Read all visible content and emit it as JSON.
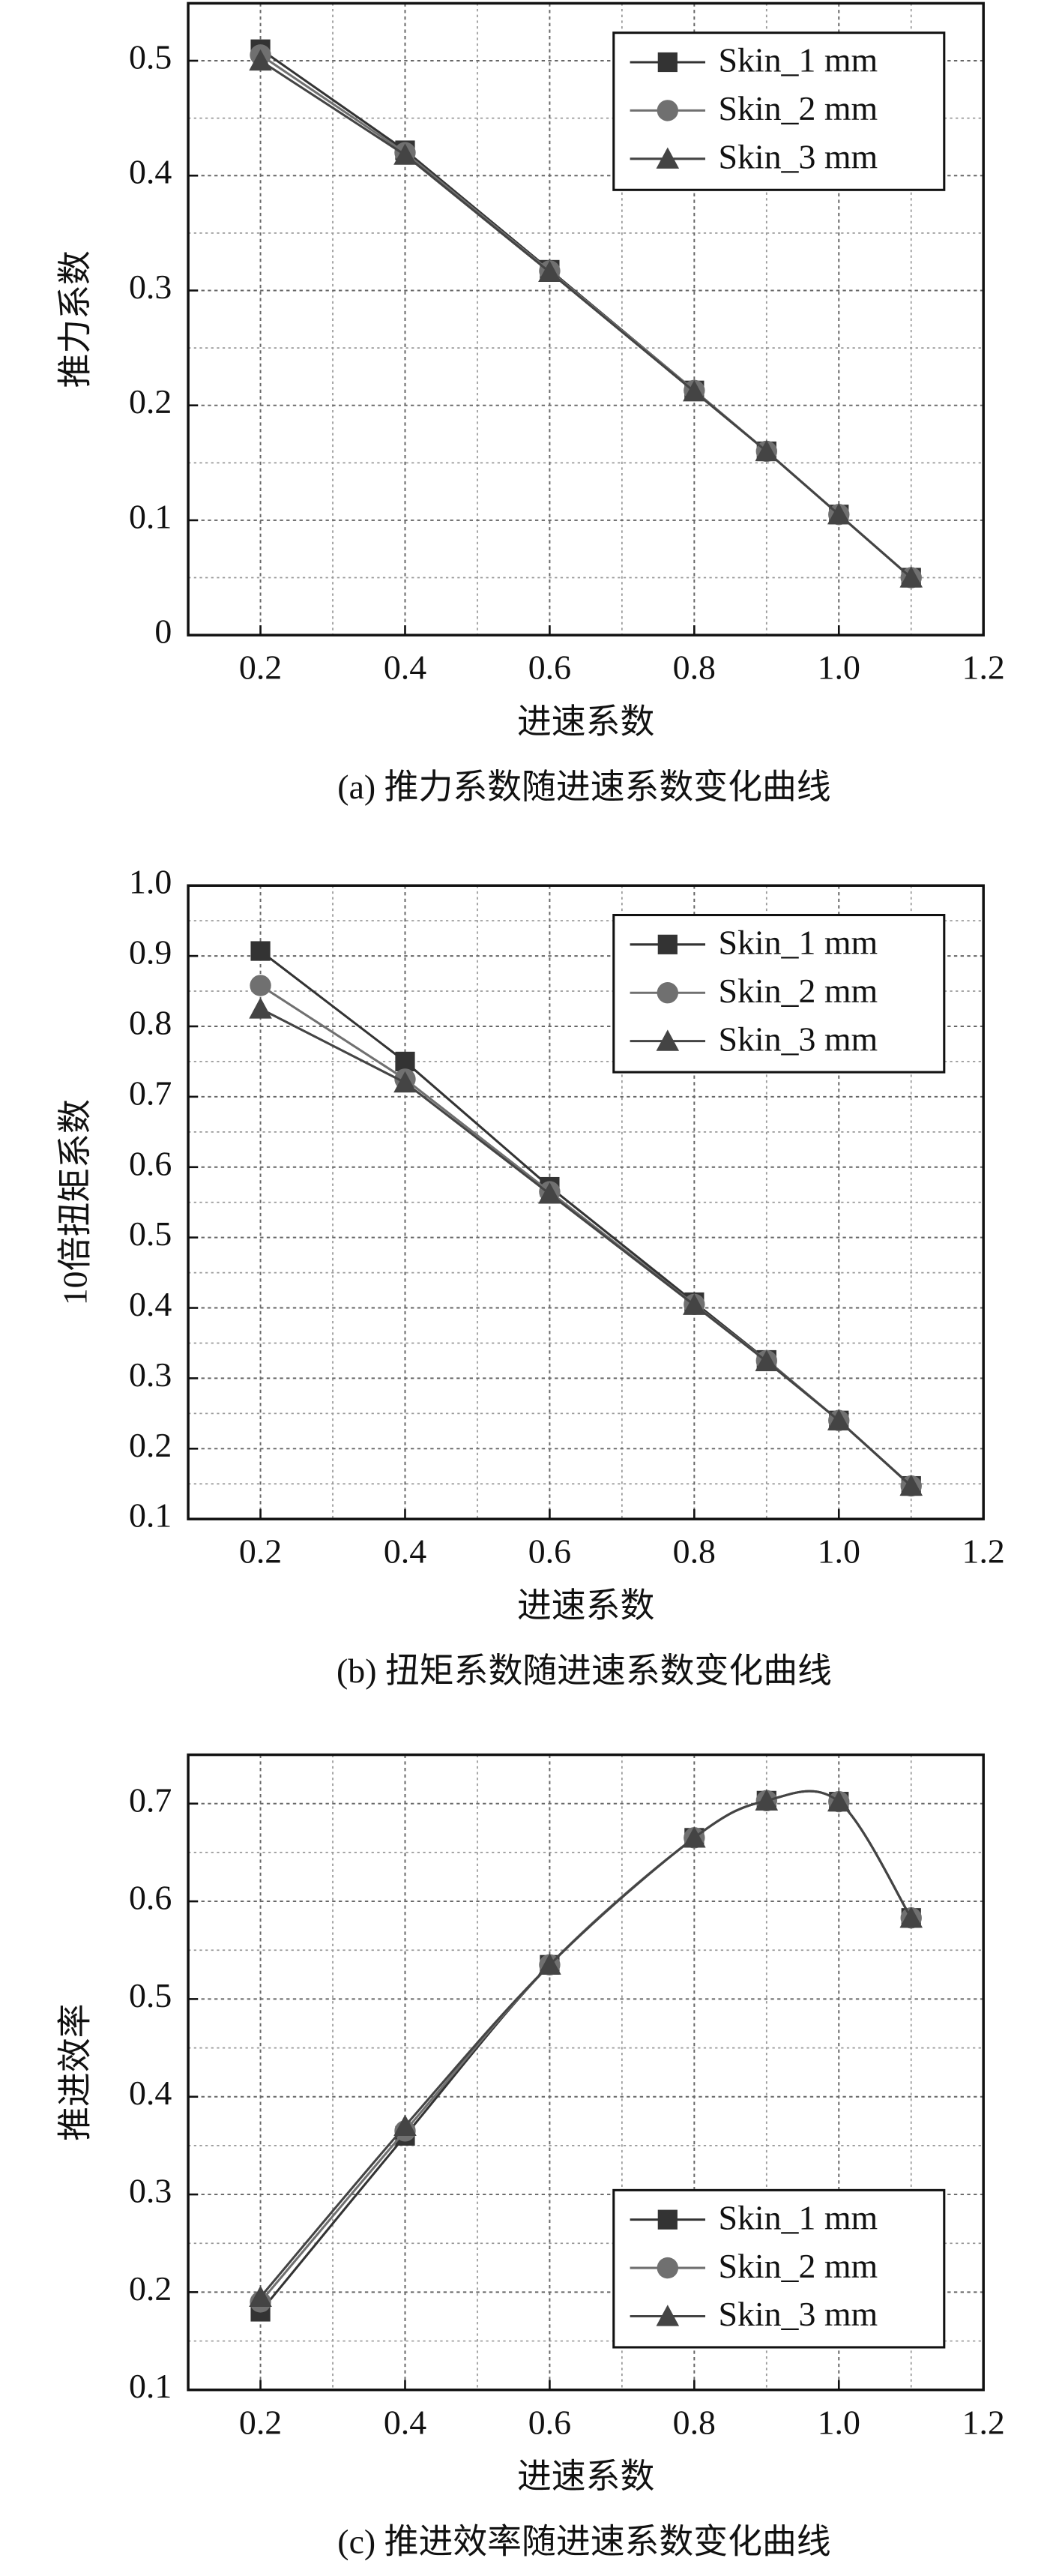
{
  "chart_data": [
    {
      "type": "line",
      "title": "(a) 推力系数随进速系数变化曲线",
      "xlabel": "进速系数",
      "ylabel": "推力系数",
      "xlim": [
        0.1,
        1.2
      ],
      "xticks": [
        0.2,
        0.4,
        0.6,
        0.8,
        {
          "value": 1,
          "label": "1.0"
        },
        1.2
      ],
      "ylim": [
        0,
        0.55
      ],
      "yticks": [
        0,
        0.1,
        0.2,
        0.3,
        0.4,
        0.5
      ],
      "grid": true,
      "legend": "upper right",
      "smooth": false,
      "series": [
        {
          "name": "Skin_1 mm",
          "color": "#333333",
          "marker": "square",
          "x": [
            0.2,
            0.4,
            0.6,
            0.8,
            0.9,
            1,
            1.1
          ],
          "values": [
            0.51,
            0.422,
            0.318,
            0.213,
            0.16,
            0.105,
            0.05
          ]
        },
        {
          "name": "Skin_2 mm",
          "color": "#707070",
          "marker": "circle",
          "x": [
            0.2,
            0.4,
            0.6,
            0.8,
            0.9,
            1,
            1.1
          ],
          "values": [
            0.505,
            0.42,
            0.317,
            0.213,
            0.16,
            0.105,
            0.05
          ]
        },
        {
          "name": "Skin_3 mm",
          "color": "#444444",
          "marker": "triangle",
          "x": [
            0.2,
            0.4,
            0.6,
            0.8,
            0.9,
            1,
            1.1
          ],
          "values": [
            0.5,
            0.418,
            0.316,
            0.212,
            0.16,
            0.105,
            0.05
          ]
        }
      ]
    },
    {
      "type": "line",
      "title": "(b) 扭矩系数随进速系数变化曲线",
      "xlabel": "进速系数",
      "ylabel": "10倍扭矩系数",
      "xlim": [
        0.1,
        1.2
      ],
      "xticks": [
        0.2,
        0.4,
        0.6,
        0.8,
        {
          "value": 1,
          "label": "1.0"
        },
        1.2
      ],
      "ylim": [
        0.1,
        1.0
      ],
      "yticks": [
        0.1,
        0.2,
        0.3,
        0.4,
        0.5,
        0.6,
        0.7,
        0.8,
        0.9,
        {
          "value": 1,
          "label": "1.0"
        }
      ],
      "grid": true,
      "legend": "upper right",
      "smooth": false,
      "series": [
        {
          "name": "Skin_1 mm",
          "color": "#333333",
          "marker": "square",
          "x": [
            0.2,
            0.4,
            0.6,
            0.8,
            0.9,
            1,
            1.1
          ],
          "values": [
            0.907,
            0.75,
            0.572,
            0.408,
            0.326,
            0.24,
            0.147
          ]
        },
        {
          "name": "Skin_2 mm",
          "color": "#707070",
          "marker": "circle",
          "x": [
            0.2,
            0.4,
            0.6,
            0.8,
            0.9,
            1,
            1.1
          ],
          "values": [
            0.858,
            0.725,
            0.565,
            0.405,
            0.325,
            0.24,
            0.147
          ]
        },
        {
          "name": "Skin_3 mm",
          "color": "#444444",
          "marker": "triangle",
          "x": [
            0.2,
            0.4,
            0.6,
            0.8,
            0.9,
            1,
            1.1
          ],
          "values": [
            0.825,
            0.72,
            0.562,
            0.404,
            0.324,
            0.24,
            0.147
          ]
        }
      ]
    },
    {
      "type": "line",
      "title": "(c) 推进效率随进速系数变化曲线",
      "xlabel": "进速系数",
      "ylabel": "推进效率",
      "xlim": [
        0.1,
        1.2
      ],
      "xticks": [
        0.2,
        0.4,
        0.6,
        0.8,
        {
          "value": 1,
          "label": "1.0"
        },
        1.2
      ],
      "ylim": [
        0.1,
        0.75
      ],
      "yticks": [
        0.1,
        0.2,
        0.3,
        0.4,
        0.5,
        0.6,
        0.7
      ],
      "grid": true,
      "legend": "lower right",
      "smooth": true,
      "series": [
        {
          "name": "Skin_1 mm",
          "color": "#333333",
          "marker": "square",
          "x": [
            0.2,
            0.4,
            0.6,
            0.8,
            0.9,
            1,
            1.1
          ],
          "values": [
            0.18,
            0.36,
            0.535,
            0.665,
            0.703,
            0.702,
            0.583
          ]
        },
        {
          "name": "Skin_2 mm",
          "color": "#707070",
          "marker": "circle",
          "x": [
            0.2,
            0.4,
            0.6,
            0.8,
            0.9,
            1,
            1.1
          ],
          "values": [
            0.19,
            0.365,
            0.535,
            0.665,
            0.703,
            0.702,
            0.583
          ]
        },
        {
          "name": "Skin_3 mm",
          "color": "#444444",
          "marker": "triangle",
          "x": [
            0.2,
            0.4,
            0.6,
            0.8,
            0.9,
            1,
            1.1
          ],
          "values": [
            0.195,
            0.37,
            0.535,
            0.665,
            0.703,
            0.702,
            0.583
          ]
        }
      ]
    }
  ]
}
